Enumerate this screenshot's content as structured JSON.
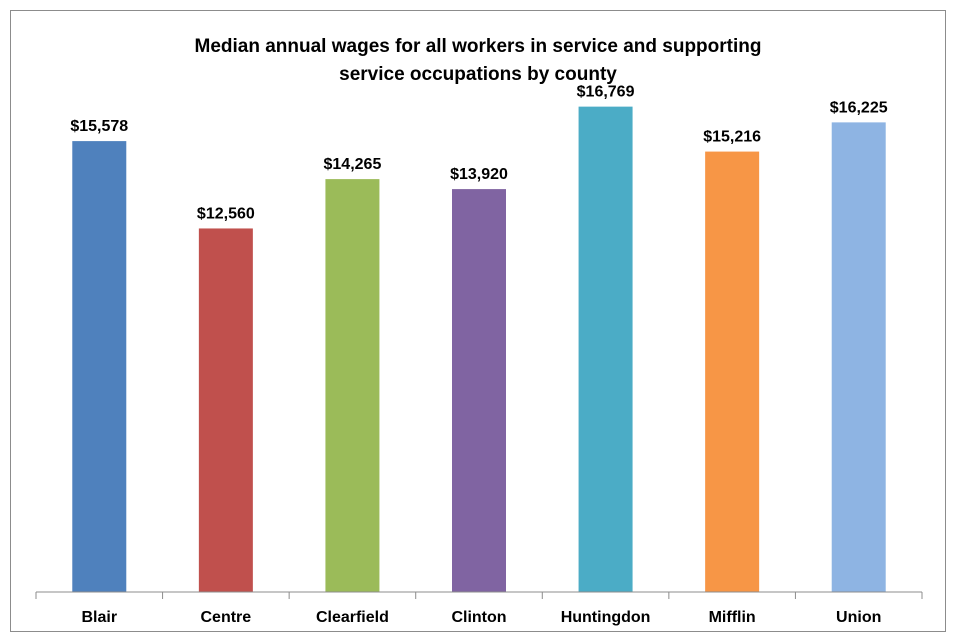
{
  "chart_data": {
    "type": "bar",
    "title_line1": "Median annual wages for all workers in service and supporting",
    "title_line2": "service occupations by county",
    "categories": [
      "Blair",
      "Centre",
      "Clearfield",
      "Clinton",
      "Huntingdon",
      "Mifflin",
      "Union"
    ],
    "values": [
      15578,
      12560,
      14265,
      13920,
      16769,
      15216,
      16225
    ],
    "value_labels": [
      "$15,578",
      "$12,560",
      "$14,265",
      "$13,920",
      "$16,769",
      "$15,216",
      "$16,225"
    ],
    "colors": [
      "#4f81bd",
      "#c0504d",
      "#9bbb59",
      "#8064a2",
      "#4bacc6",
      "#f79646",
      "#8eb4e3"
    ],
    "xlabel": "",
    "ylabel": "",
    "ylim": [
      0,
      18000
    ],
    "grid": false,
    "legend": "none"
  }
}
